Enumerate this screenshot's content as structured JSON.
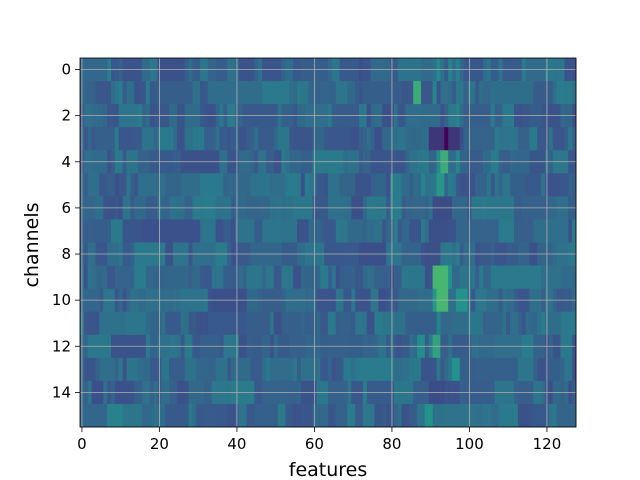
{
  "chart_data": {
    "type": "heatmap",
    "title": "",
    "xlabel": "features",
    "ylabel": "channels",
    "n_rows": 16,
    "n_cols": 128,
    "xlim": [
      -0.5,
      127.5
    ],
    "ylim": [
      15.5,
      -0.5
    ],
    "x_ticks": [
      0,
      20,
      40,
      60,
      80,
      100,
      120
    ],
    "y_ticks": [
      0,
      2,
      4,
      6,
      8,
      10,
      12,
      14
    ],
    "grid": true,
    "colormap": "viridis",
    "value_range": [
      -3,
      3
    ],
    "background_value": 0,
    "notable_cells": [
      {
        "row": 0,
        "cols": [
          92
        ],
        "value": 1.2
      },
      {
        "row": 0,
        "cols": [
          95
        ],
        "value": 1.0
      },
      {
        "row": 0,
        "cols": [
          97
        ],
        "value": 0.9
      },
      {
        "row": 1,
        "cols": [
          86,
          87
        ],
        "value": 2.6
      },
      {
        "row": 1,
        "cols": [
          91
        ],
        "value": 1.1
      },
      {
        "row": 2,
        "cols": [
          97
        ],
        "value": 1.0
      },
      {
        "row": 3,
        "cols": [
          90,
          91,
          92,
          93,
          94,
          95,
          96,
          97
        ],
        "value": -1.5
      },
      {
        "row": 3,
        "cols": [
          94
        ],
        "value": -3.0
      },
      {
        "row": 4,
        "cols": [
          93,
          94
        ],
        "value": 2.6
      },
      {
        "row": 4,
        "cols": [
          92
        ],
        "value": 1.3
      },
      {
        "row": 4,
        "cols": [
          97
        ],
        "value": 1.2
      },
      {
        "row": 5,
        "cols": [
          92,
          93
        ],
        "value": 1.8
      },
      {
        "row": 5,
        "cols": [
          88
        ],
        "value": 1.0
      },
      {
        "row": 6,
        "cols": [
          91,
          92,
          93,
          94,
          95
        ],
        "value": -0.9
      },
      {
        "row": 7,
        "cols": [
          90,
          91,
          92,
          93,
          94
        ],
        "value": -0.8
      },
      {
        "row": 8,
        "cols": [
          89,
          90,
          91,
          92
        ],
        "value": -0.8
      },
      {
        "row": 9,
        "cols": [
          91,
          92,
          93,
          94
        ],
        "value": 3.0
      },
      {
        "row": 9,
        "cols": [
          95
        ],
        "value": 1.5
      },
      {
        "row": 10,
        "cols": [
          92,
          93,
          94
        ],
        "value": 3.0
      },
      {
        "row": 10,
        "cols": [
          91
        ],
        "value": 1.8
      },
      {
        "row": 10,
        "cols": [
          97,
          98,
          99
        ],
        "value": 1.6
      },
      {
        "row": 11,
        "cols": [
          92
        ],
        "value": 1.0
      },
      {
        "row": 12,
        "cols": [
          91,
          92
        ],
        "value": 2.2
      },
      {
        "row": 12,
        "cols": [
          87,
          88
        ],
        "value": 1.4
      },
      {
        "row": 13,
        "cols": [
          96,
          97
        ],
        "value": 1.6
      },
      {
        "row": 14,
        "cols": [
          90,
          91,
          92,
          93
        ],
        "value": -0.9
      },
      {
        "row": 15,
        "cols": [
          89,
          90
        ],
        "value": 1.6
      },
      {
        "row": 15,
        "cols": [
          7,
          8,
          9,
          10
        ],
        "value": 1.0
      }
    ]
  }
}
